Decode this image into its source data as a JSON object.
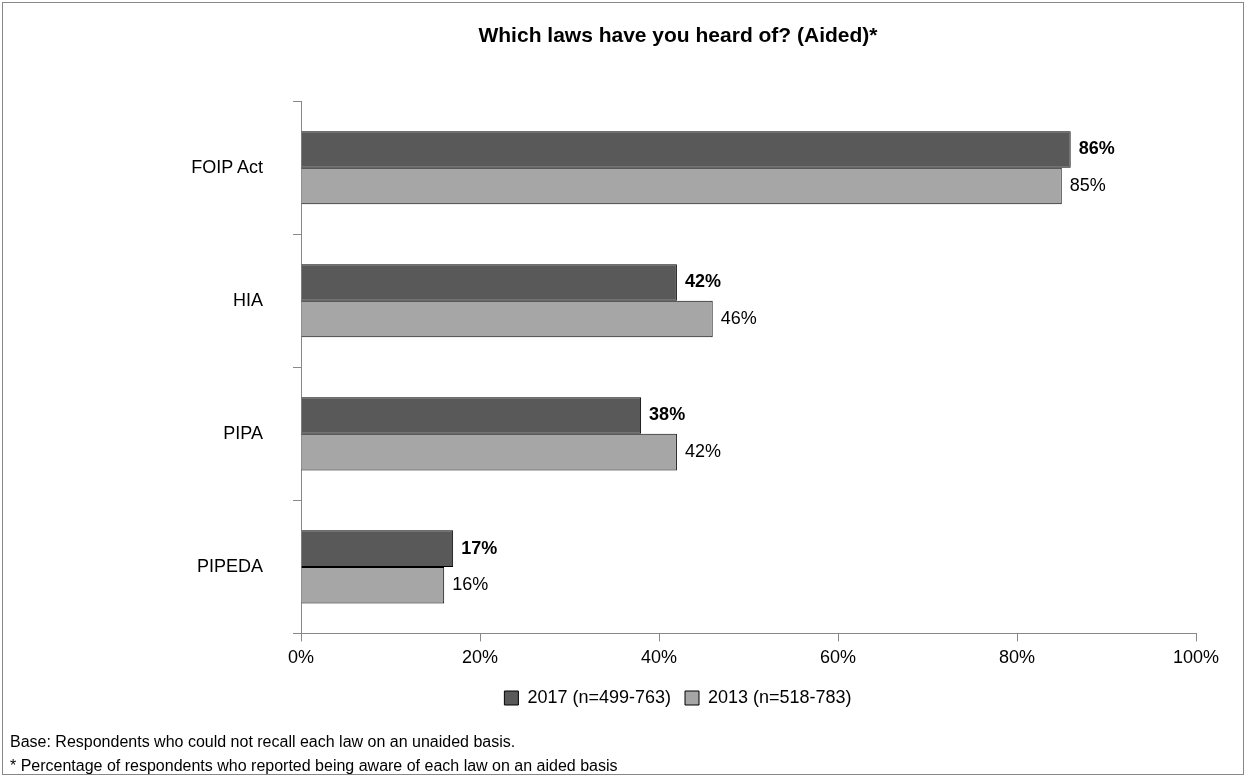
{
  "chart_data": {
    "type": "bar",
    "orientation": "horizontal",
    "title": "Which laws have you heard of? (Aided)*",
    "categories": [
      "FOIP Act",
      "HIA",
      "PIPA",
      "PIPEDA"
    ],
    "series": [
      {
        "name": "2017 (n=499-763)",
        "color": "#595959",
        "values": [
          86,
          42,
          38,
          17
        ],
        "value_labels": [
          "86%",
          "42%",
          "38%",
          "17%"
        ]
      },
      {
        "name": "2013 (n=518-783)",
        "color": "#a6a6a6",
        "values": [
          85,
          46,
          42,
          16
        ],
        "value_labels": [
          "85%",
          "46%",
          "42%",
          "16%"
        ]
      }
    ],
    "xlim": [
      0,
      100
    ],
    "xticks": [
      {
        "value": 0,
        "label": "0%"
      },
      {
        "value": 20,
        "label": "20%"
      },
      {
        "value": 40,
        "label": "40%"
      },
      {
        "value": 60,
        "label": "60%"
      },
      {
        "value": 80,
        "label": "80%"
      },
      {
        "value": 100,
        "label": "100%"
      }
    ],
    "grid": false,
    "legend": "bottom",
    "annotations": [
      "Base: Respondents who could not recall each law on an unaided basis.",
      "* Percentage of respondents who reported being aware of each law on an aided basis"
    ]
  }
}
